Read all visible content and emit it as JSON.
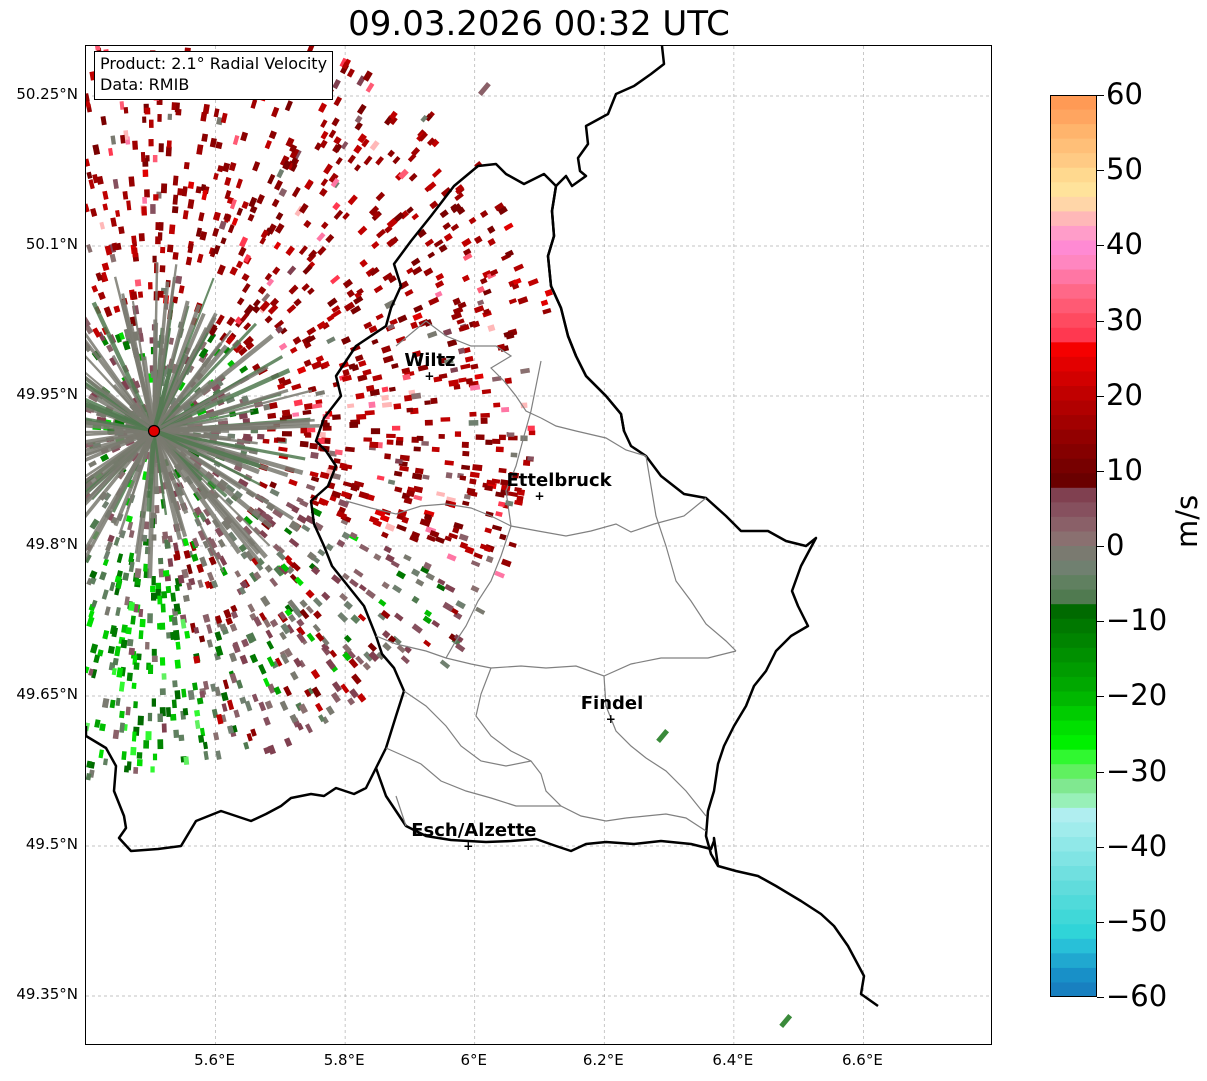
{
  "title": "09.03.2026 00:32 UTC",
  "info_box": {
    "product_line": "Product: 2.1° Radial Velocity",
    "data_line": "Data: RMIB"
  },
  "axes": {
    "x_ticks": [
      "5.6°E",
      "5.8°E",
      "6°E",
      "6.2°E",
      "6.4°E",
      "6.6°E"
    ],
    "y_ticks": [
      "50.25°N",
      "50.1°N",
      "49.95°N",
      "49.8°N",
      "49.65°N",
      "49.5°N",
      "49.35°N"
    ],
    "grid": true
  },
  "map": {
    "lon_range": [
      5.4,
      6.8
    ],
    "lat_range": [
      49.3,
      50.3
    ],
    "cities": [
      {
        "name": "Wiltz",
        "lon": 5.93,
        "lat": 49.97
      },
      {
        "name": "Ettelbruck",
        "lon": 6.1,
        "lat": 49.85
      },
      {
        "name": "Findel",
        "lon": 6.21,
        "lat": 49.627
      },
      {
        "name": "Esch/Alzette",
        "lon": 5.99,
        "lat": 49.5
      }
    ],
    "radar_site": {
      "lon": 5.505,
      "lat": 49.915
    },
    "border_color": "#000000",
    "canton_color": "#808080"
  },
  "colorbar": {
    "label": "m/s",
    "min": -60,
    "max": 60,
    "ticks": [
      "60",
      "50",
      "40",
      "30",
      "20",
      "10",
      "0",
      "−10",
      "−20",
      "−30",
      "−40",
      "−50",
      "−60"
    ],
    "colors_top_to_bottom": [
      "#ff9a55",
      "#ffa560",
      "#ffb46c",
      "#ffbf78",
      "#ffca84",
      "#ffd98f",
      "#ffe39b",
      "#ffd6a8",
      "#ffb8b8",
      "#ff9dc9",
      "#ff8ad3",
      "#ff86c0",
      "#ff76a4",
      "#ff6888",
      "#ff5a74",
      "#ff4a60",
      "#ff3850",
      "#f50000",
      "#e30000",
      "#d20000",
      "#c10000",
      "#b10000",
      "#a20000",
      "#920000",
      "#850000",
      "#770000",
      "#6a0000",
      "#804050",
      "#86505e",
      "#8a6068",
      "#8a7070",
      "#7a7a70",
      "#708070",
      "#608060",
      "#507a50",
      "#006a00",
      "#007800",
      "#008400",
      "#009000",
      "#009c00",
      "#00a800",
      "#00b800",
      "#00cc00",
      "#00e000",
      "#00f000",
      "#30f830",
      "#60f060",
      "#80e890",
      "#98f0b8",
      "#b0eef0",
      "#a0ecec",
      "#90e8e8",
      "#80e4e4",
      "#70e0e0",
      "#60dcdc",
      "#50dada",
      "#40d8d8",
      "#30d4d8",
      "#28c0d8",
      "#20a8d0",
      "#1890c8",
      "#1880c0"
    ]
  }
}
